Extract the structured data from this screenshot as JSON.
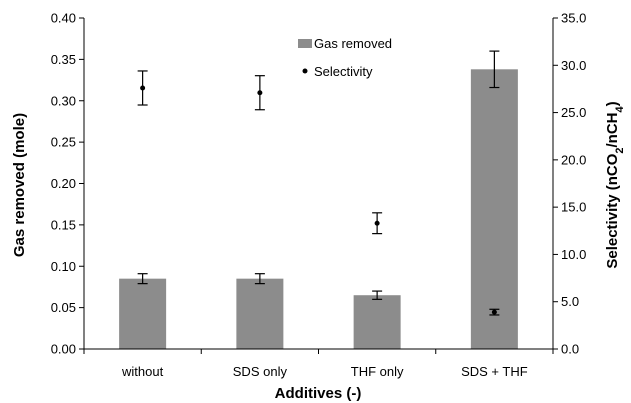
{
  "chart_data": {
    "type": "bar",
    "categories": [
      "without",
      "SDS only",
      "THF only",
      "SDS + THF"
    ],
    "series": [
      {
        "name": "Gas removed",
        "axis": "left",
        "mark": "bar",
        "values": [
          0.085,
          0.085,
          0.065,
          0.338
        ],
        "errors": [
          0.006,
          0.006,
          0.005,
          0.022
        ],
        "color": "#8c8c8c"
      },
      {
        "name": "Selectivity",
        "axis": "right",
        "mark": "point",
        "values": [
          27.6,
          27.1,
          13.3,
          3.9
        ],
        "errors": [
          1.8,
          1.8,
          1.1,
          0.3
        ],
        "color": "#000000"
      }
    ],
    "xlabel": "Additives (-)",
    "ylabel": "Gas removed (mole)",
    "y2label_parts": [
      "Selectivity (nCO",
      "2",
      "/nCH",
      "4",
      ")"
    ],
    "ylim": [
      0,
      0.4
    ],
    "y2lim": [
      0,
      35
    ],
    "yticks": [
      "0.00",
      "0.05",
      "0.10",
      "0.15",
      "0.20",
      "0.25",
      "0.30",
      "0.35",
      "0.40"
    ],
    "y2ticks": [
      "0.0",
      "5.0",
      "10.0",
      "15.0",
      "20.0",
      "25.0",
      "30.0",
      "35.0"
    ],
    "grid": false,
    "legend": "top-center"
  }
}
